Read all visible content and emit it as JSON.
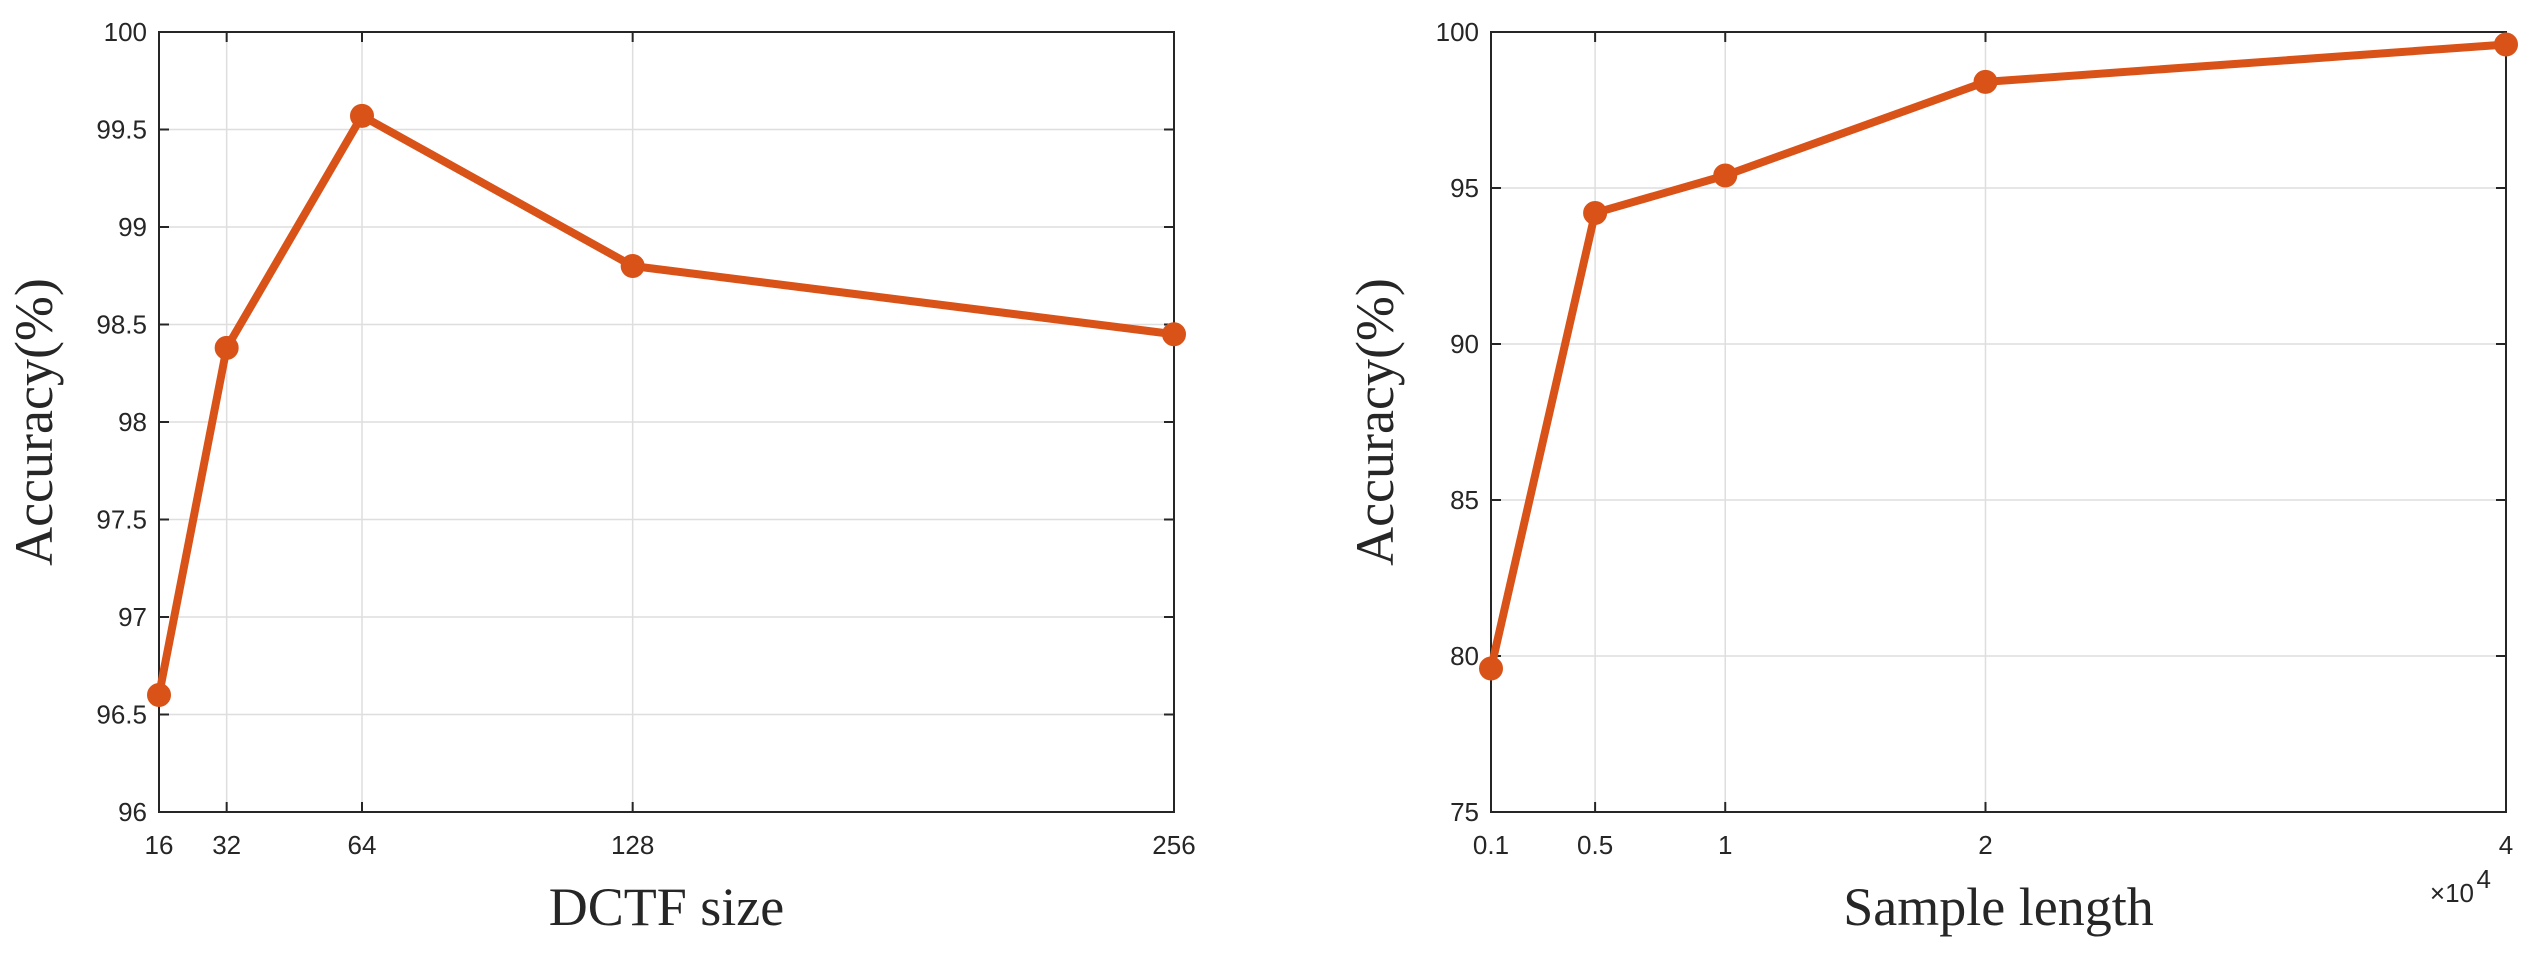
{
  "colors": {
    "series": "#D95319",
    "axis": "#262626",
    "grid": "#DEDEDE"
  },
  "chart_data": [
    {
      "type": "line",
      "xlabel": "DCTF size",
      "ylabel": "Accuracy(%)",
      "x": [
        16,
        32,
        64,
        128,
        256
      ],
      "series": [
        {
          "values": [
            96.6,
            98.38,
            99.57,
            98.8,
            98.45
          ]
        }
      ],
      "xlim": [
        16,
        256
      ],
      "ylim": [
        96,
        100
      ],
      "xticks": [
        16,
        32,
        64,
        128,
        256
      ],
      "xtick_labels": [
        "16",
        "32",
        "64",
        "128",
        "256"
      ],
      "yticks": [
        96,
        96.5,
        97,
        97.5,
        98,
        98.5,
        99,
        99.5,
        100
      ],
      "ytick_labels": [
        "96",
        "96.5",
        "97",
        "97.5",
        "98",
        "98.5",
        "99",
        "99.5",
        "100"
      ],
      "grid": true,
      "marker": "circle"
    },
    {
      "type": "line",
      "xlabel": "Sample length",
      "ylabel": "Accuracy(%)",
      "x_multiplier_label": "×10",
      "x_multiplier_exponent": "4",
      "x": [
        1000,
        5000,
        10000,
        20000,
        40000
      ],
      "series": [
        {
          "values": [
            79.6,
            94.2,
            95.4,
            98.4,
            99.6
          ]
        }
      ],
      "xlim": [
        1000,
        40000
      ],
      "ylim": [
        75,
        100
      ],
      "xticks": [
        1000,
        5000,
        10000,
        20000,
        40000
      ],
      "xtick_labels": [
        "0.1",
        "0.5",
        "1",
        "2",
        "4"
      ],
      "yticks": [
        75,
        80,
        85,
        90,
        95,
        100
      ],
      "ytick_labels": [
        "75",
        "80",
        "85",
        "90",
        "95",
        "100"
      ],
      "grid": true,
      "marker": "circle"
    }
  ]
}
